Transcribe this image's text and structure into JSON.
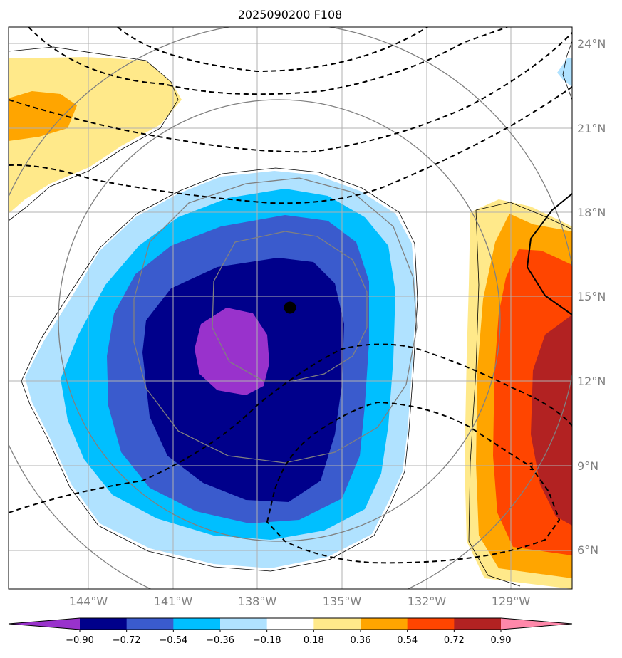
{
  "title": "2025090200 F108",
  "lat_labels": [
    "24°N",
    "21°N",
    "18°N",
    "15°N",
    "12°N",
    "9°N",
    "6°N"
  ],
  "lon_labels": [
    "144°W",
    "141°W",
    "138°W",
    "135°W",
    "132°W",
    "129°W"
  ],
  "contour_label": "1",
  "colorbar": {
    "ticks": [
      "−0.90",
      "−0.72",
      "−0.54",
      "−0.36",
      "−0.18",
      "0.18",
      "0.36",
      "0.54",
      "0.72",
      "0.90"
    ],
    "colors": [
      "#9932cc",
      "#00008b",
      "#3a5bcd",
      "#00bfff",
      "#b0e2ff",
      "#ffffff",
      "#ffe98a",
      "#ffa500",
      "#ff4500",
      "#b22222",
      "#ff88aa"
    ]
  },
  "chart_data": {
    "type": "heatmap",
    "title": "2025090200 F108",
    "lon_ticks": [
      -144,
      -141,
      -138,
      -135,
      -132,
      -129
    ],
    "lat_ticks": [
      24,
      21,
      18,
      15,
      12,
      9,
      6
    ],
    "levels": [
      -0.9,
      -0.72,
      -0.54,
      -0.36,
      -0.18,
      0.18,
      0.36,
      0.54,
      0.72,
      0.9
    ],
    "center_marker": {
      "lon": -136.9,
      "lat": 14.6
    },
    "grid": true
  }
}
